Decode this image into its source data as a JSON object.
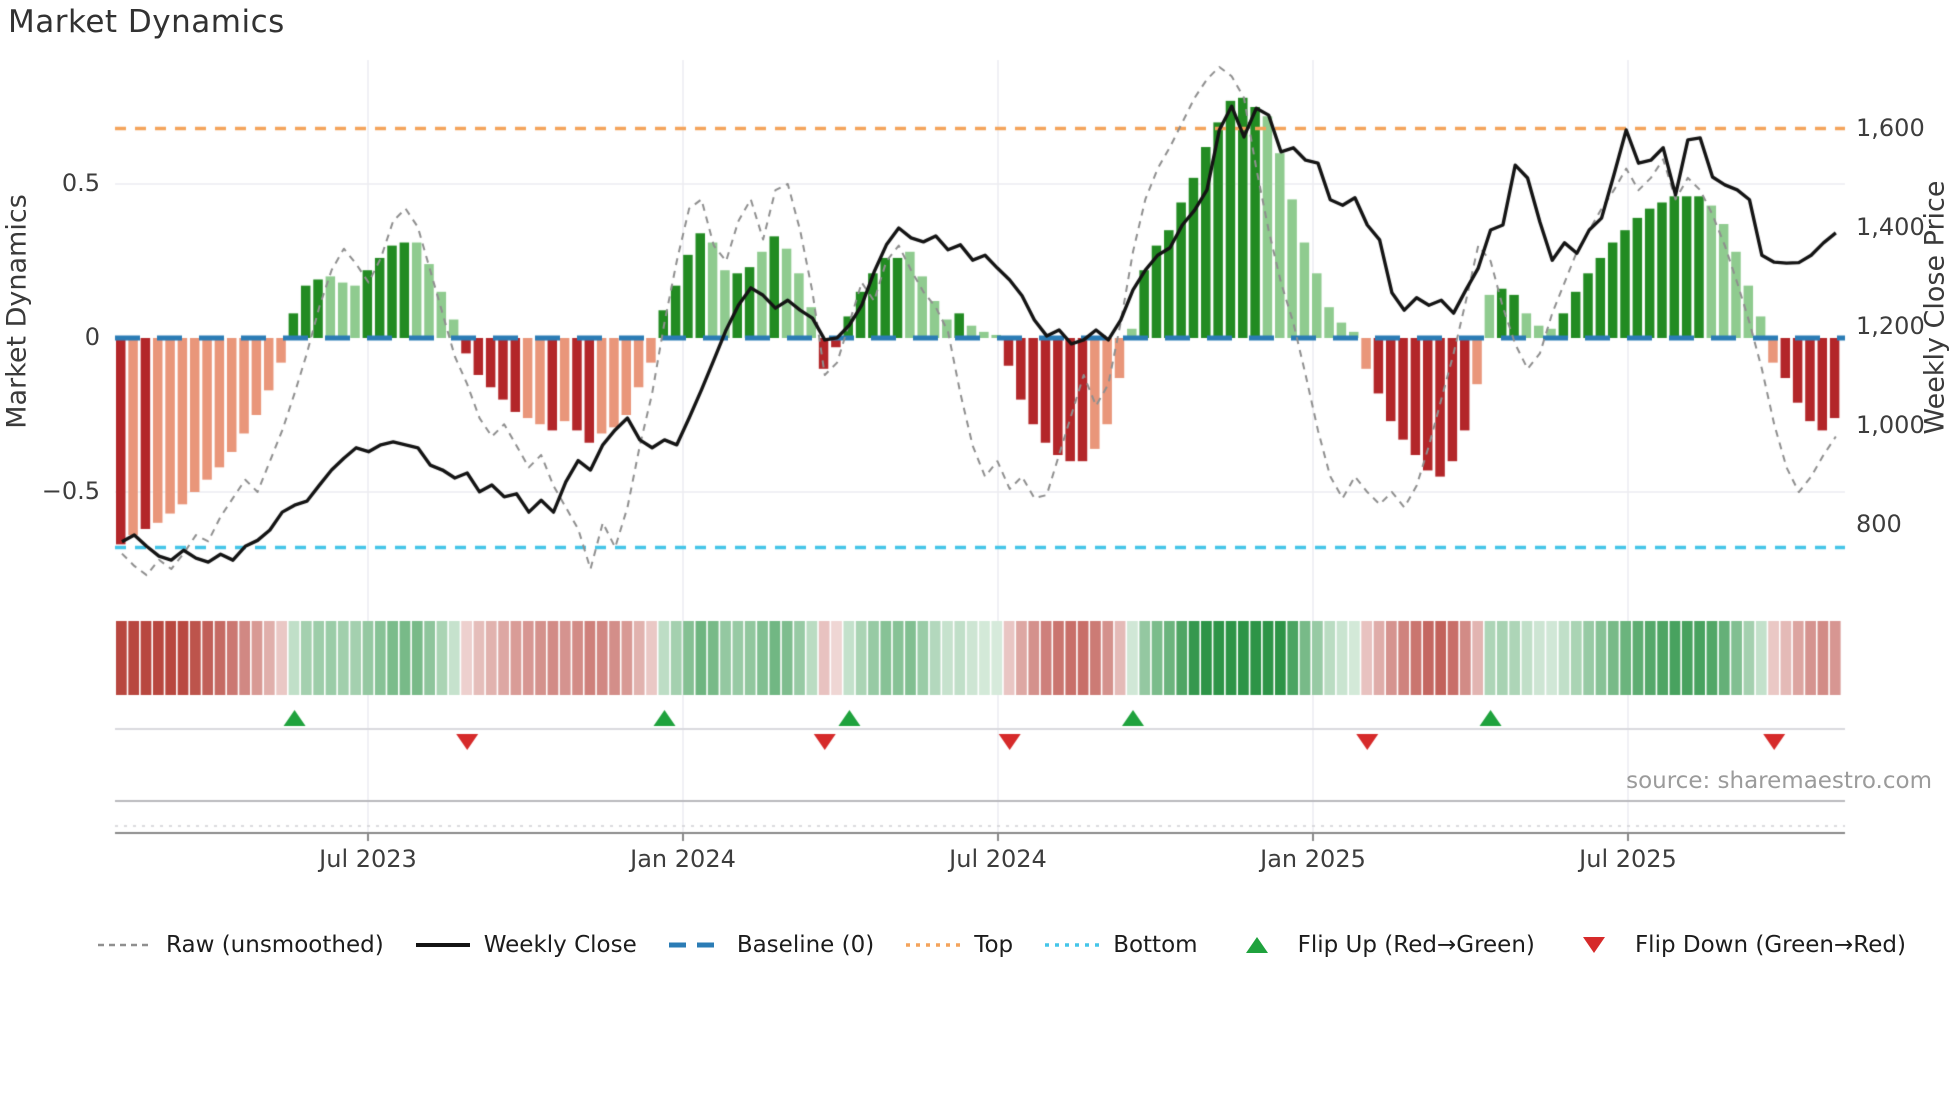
{
  "title": "Market Dynamics",
  "source": "source: sharemaestro.com",
  "axes": {
    "left": {
      "title": "Market Dynamics",
      "ticks": [
        {
          "label": "0.5",
          "value": 0.5
        },
        {
          "label": "0",
          "value": 0
        },
        {
          "label": "−0.5",
          "value": -0.5
        }
      ]
    },
    "right": {
      "title": "Weekly Close Price",
      "ticks": [
        {
          "label": "1,600",
          "value": 1600
        },
        {
          "label": "1,400",
          "value": 1400
        },
        {
          "label": "1,200",
          "value": 1200
        },
        {
          "label": "1,000",
          "value": 1000
        },
        {
          "label": "800",
          "value": 800
        }
      ]
    },
    "x": {
      "ticks": [
        {
          "label": "Jul 2023"
        },
        {
          "label": "Jan 2024"
        },
        {
          "label": "Jul 2024"
        },
        {
          "label": "Jan 2025"
        },
        {
          "label": "Jul 2025"
        }
      ]
    }
  },
  "legend": [
    {
      "label": "Raw (unsmoothed)",
      "marker": "dash",
      "color": "#8f8f8f"
    },
    {
      "label": "Weekly Close",
      "marker": "solid",
      "color": "#141414"
    },
    {
      "label": "Baseline (0)",
      "marker": "longdash",
      "color": "#2b7cb5"
    },
    {
      "label": "Top",
      "marker": "dot",
      "color": "#f4a45b"
    },
    {
      "label": "Bottom",
      "marker": "dot",
      "color": "#45c5e8"
    },
    {
      "label": "Flip Up (Red→Green)",
      "marker": "tri-up",
      "color": "#1fa23d"
    },
    {
      "label": "Flip Down (Green→Red)",
      "marker": "tri-down",
      "color": "#d62a2a"
    }
  ],
  "colors": {
    "bar_dark_red": "#b32629",
    "bar_light_red": "#e9967a",
    "bar_dark_green": "#228b22",
    "bar_light_green": "#8fcb8f",
    "heat_red": "#b8473f",
    "heat_green": "#2d9447",
    "close_line": "#141414",
    "raw_line": "#8f8f8f",
    "baseline": "#2b7cb5",
    "top_line": "#f4a45b",
    "bottom_line": "#45c5e8",
    "grid": "#ececf1",
    "frame": "#8a8a8a"
  },
  "chart_data": {
    "type": "bar",
    "description": "Weekly market-dynamics oscillator bars with raw overlay, weekly close price line (right axis), heat strip and regime flip markers",
    "weeks": 140,
    "ylim_left": [
      -0.8,
      0.85
    ],
    "ylim_right": [
      700,
      1700
    ],
    "baseline": 0,
    "top_threshold": 0.68,
    "bottom_threshold": -0.68,
    "oscillator": [
      -0.67,
      -0.64,
      -0.62,
      -0.6,
      -0.57,
      -0.54,
      -0.5,
      -0.46,
      -0.42,
      -0.37,
      -0.31,
      -0.25,
      -0.17,
      -0.08,
      0.08,
      0.17,
      0.19,
      0.2,
      0.18,
      0.17,
      0.22,
      0.26,
      0.3,
      0.31,
      0.31,
      0.24,
      0.15,
      0.06,
      -0.05,
      -0.12,
      -0.16,
      -0.2,
      -0.24,
      -0.26,
      -0.28,
      -0.3,
      -0.27,
      -0.3,
      -0.34,
      -0.31,
      -0.29,
      -0.25,
      -0.16,
      -0.08,
      0.09,
      0.17,
      0.27,
      0.34,
      0.31,
      0.22,
      0.21,
      0.23,
      0.28,
      0.33,
      0.29,
      0.21,
      0.1,
      -0.1,
      -0.03,
      0.07,
      0.15,
      0.21,
      0.26,
      0.26,
      0.28,
      0.2,
      0.12,
      0.06,
      0.08,
      0.04,
      0.02,
      0.01,
      -0.09,
      -0.2,
      -0.28,
      -0.34,
      -0.38,
      -0.4,
      -0.4,
      -0.36,
      -0.28,
      -0.13,
      0.03,
      0.22,
      0.3,
      0.35,
      0.44,
      0.52,
      0.62,
      0.7,
      0.77,
      0.78,
      0.75,
      0.72,
      0.6,
      0.45,
      0.31,
      0.21,
      0.1,
      0.05,
      0.02,
      -0.1,
      -0.18,
      -0.27,
      -0.33,
      -0.38,
      -0.43,
      -0.45,
      -0.4,
      -0.3,
      -0.15,
      0.14,
      0.16,
      0.14,
      0.08,
      0.04,
      0.03,
      0.08,
      0.15,
      0.21,
      0.26,
      0.31,
      0.35,
      0.39,
      0.42,
      0.44,
      0.46,
      0.46,
      0.46,
      0.43,
      0.37,
      0.28,
      0.17,
      0.07,
      -0.08,
      -0.13,
      -0.21,
      -0.27,
      -0.3,
      -0.26
    ],
    "bar_shade": "dldllllllllllldddlllddddlllldddddlldlddlllllddddllddldllldddddddlllldllldddddddllllddddddddddlllllllllddddddddllddlllddddddddddddlllllldddddl",
    "weekly_close": [
      766,
      780,
      757,
      737,
      729,
      749,
      733,
      725,
      741,
      729,
      757,
      769,
      790,
      826,
      840,
      848,
      880,
      911,
      935,
      956,
      948,
      962,
      968,
      962,
      956,
      921,
      911,
      895,
      905,
      867,
      881,
      857,
      863,
      826,
      850,
      826,
      887,
      930,
      911,
      962,
      992,
      1016,
      972,
      956,
      972,
      962,
      1016,
      1073,
      1133,
      1194,
      1244,
      1279,
      1264,
      1238,
      1254,
      1234,
      1218,
      1174,
      1178,
      1204,
      1244,
      1311,
      1366,
      1400,
      1380,
      1372,
      1384,
      1356,
      1366,
      1335,
      1345,
      1319,
      1295,
      1263,
      1214,
      1182,
      1194,
      1166,
      1174,
      1194,
      1174,
      1214,
      1275,
      1315,
      1345,
      1360,
      1406,
      1436,
      1477,
      1598,
      1646,
      1584,
      1642,
      1628,
      1554,
      1562,
      1537,
      1531,
      1457,
      1446,
      1461,
      1406,
      1376,
      1269,
      1234,
      1259,
      1244,
      1254,
      1228,
      1275,
      1319,
      1396,
      1406,
      1527,
      1501,
      1412,
      1335,
      1370,
      1349,
      1396,
      1420,
      1507,
      1598,
      1531,
      1537,
      1562,
      1467,
      1578,
      1582,
      1503,
      1487,
      1477,
      1457,
      1345,
      1331,
      1329,
      1330,
      1345,
      1370,
      1390
    ],
    "raw": [
      -0.7,
      -0.74,
      -0.77,
      -0.72,
      -0.75,
      -0.7,
      -0.64,
      -0.66,
      -0.58,
      -0.52,
      -0.46,
      -0.5,
      -0.4,
      -0.3,
      -0.18,
      -0.05,
      0.1,
      0.22,
      0.29,
      0.24,
      0.18,
      0.26,
      0.38,
      0.42,
      0.36,
      0.22,
      0.08,
      -0.06,
      -0.15,
      -0.26,
      -0.32,
      -0.28,
      -0.35,
      -0.42,
      -0.38,
      -0.48,
      -0.55,
      -0.62,
      -0.75,
      -0.6,
      -0.68,
      -0.55,
      -0.35,
      -0.18,
      0.05,
      0.25,
      0.42,
      0.45,
      0.3,
      0.25,
      0.38,
      0.45,
      0.32,
      0.48,
      0.5,
      0.35,
      0.15,
      -0.12,
      -0.08,
      0.05,
      0.18,
      0.12,
      0.25,
      0.3,
      0.22,
      0.15,
      0.1,
      0.02,
      -0.18,
      -0.35,
      -0.45,
      -0.4,
      -0.49,
      -0.45,
      -0.52,
      -0.51,
      -0.38,
      -0.25,
      -0.12,
      -0.22,
      -0.15,
      0.05,
      0.28,
      0.45,
      0.55,
      0.62,
      0.7,
      0.78,
      0.84,
      0.88,
      0.85,
      0.78,
      0.55,
      0.35,
      0.18,
      0.05,
      -0.12,
      -0.3,
      -0.45,
      -0.52,
      -0.45,
      -0.5,
      -0.54,
      -0.5,
      -0.55,
      -0.48,
      -0.35,
      -0.2,
      -0.05,
      0.12,
      0.3,
      0.25,
      0.1,
      -0.02,
      -0.1,
      -0.05,
      0.08,
      0.18,
      0.28,
      0.35,
      0.42,
      0.48,
      0.55,
      0.48,
      0.52,
      0.58,
      0.45,
      0.52,
      0.48,
      0.4,
      0.3,
      0.18,
      0.05,
      -0.1,
      -0.28,
      -0.42,
      -0.5,
      -0.45,
      -0.38,
      -0.32
    ],
    "flip_up_weeks": [
      14,
      44,
      59,
      82,
      111
    ],
    "flip_down_weeks": [
      28,
      57,
      72,
      101,
      134
    ]
  }
}
